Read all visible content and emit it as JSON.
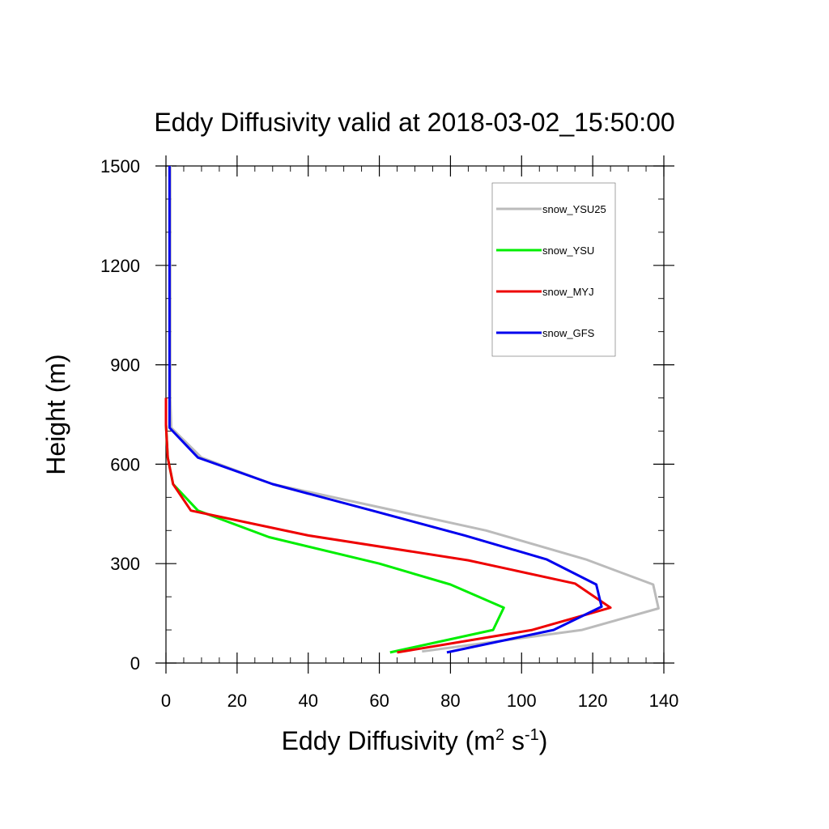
{
  "chart_data": {
    "type": "line",
    "title": "Eddy Diffusivity valid at 2018-03-02_15:50:00",
    "xlabel": {
      "main": "Eddy Diffusivity (m",
      "sup1": "2",
      "mid": " s",
      "sup2": "-1",
      "end": ")"
    },
    "ylabel": "Height (m)",
    "xlim": [
      0,
      140
    ],
    "ylim": [
      0,
      1500
    ],
    "xticks": [
      0,
      20,
      40,
      60,
      80,
      100,
      120,
      140
    ],
    "yticks": [
      0,
      300,
      600,
      900,
      1200,
      1500
    ],
    "xtick_labels": [
      "0",
      "20",
      "40",
      "60",
      "80",
      "100",
      "120",
      "140"
    ],
    "ytick_labels": [
      "0",
      "300",
      "600",
      "900",
      "1200",
      "1500"
    ],
    "legend_position": "top-right",
    "grid": false,
    "series": [
      {
        "name": "snow_YSU25",
        "color": "#bbbbbb",
        "x": [
          72,
          117,
          138.5,
          137,
          118,
          90,
          58,
          30,
          10,
          1.5,
          1.2,
          1.2,
          1.2,
          1.2,
          1.2
        ],
        "y": [
          35,
          100,
          165,
          237,
          313,
          400,
          475,
          540,
          620,
          710,
          800,
          900,
          1050,
          1300,
          1500
        ]
      },
      {
        "name": "snow_YSU",
        "color": "#00ee00",
        "x": [
          63,
          92,
          95,
          80,
          60,
          29,
          9,
          2,
          0.5,
          0,
          0
        ],
        "y": [
          32,
          100,
          167,
          237,
          300,
          380,
          460,
          540,
          620,
          720,
          800
        ]
      },
      {
        "name": "snow_MYJ",
        "color": "#ee0000",
        "x": [
          65,
          103,
          125,
          115,
          85,
          40,
          7,
          2,
          0.5,
          0,
          0
        ],
        "y": [
          32,
          100,
          167,
          240,
          310,
          385,
          460,
          540,
          620,
          720,
          800
        ]
      },
      {
        "name": "snow_GFS",
        "color": "#0000ee",
        "x": [
          79,
          109,
          122.5,
          121,
          107,
          84,
          58,
          30,
          9,
          1,
          1,
          1,
          1,
          1,
          1
        ],
        "y": [
          32,
          100,
          170,
          237,
          313,
          385,
          460,
          540,
          620,
          710,
          800,
          900,
          1050,
          1300,
          1500
        ]
      }
    ]
  }
}
